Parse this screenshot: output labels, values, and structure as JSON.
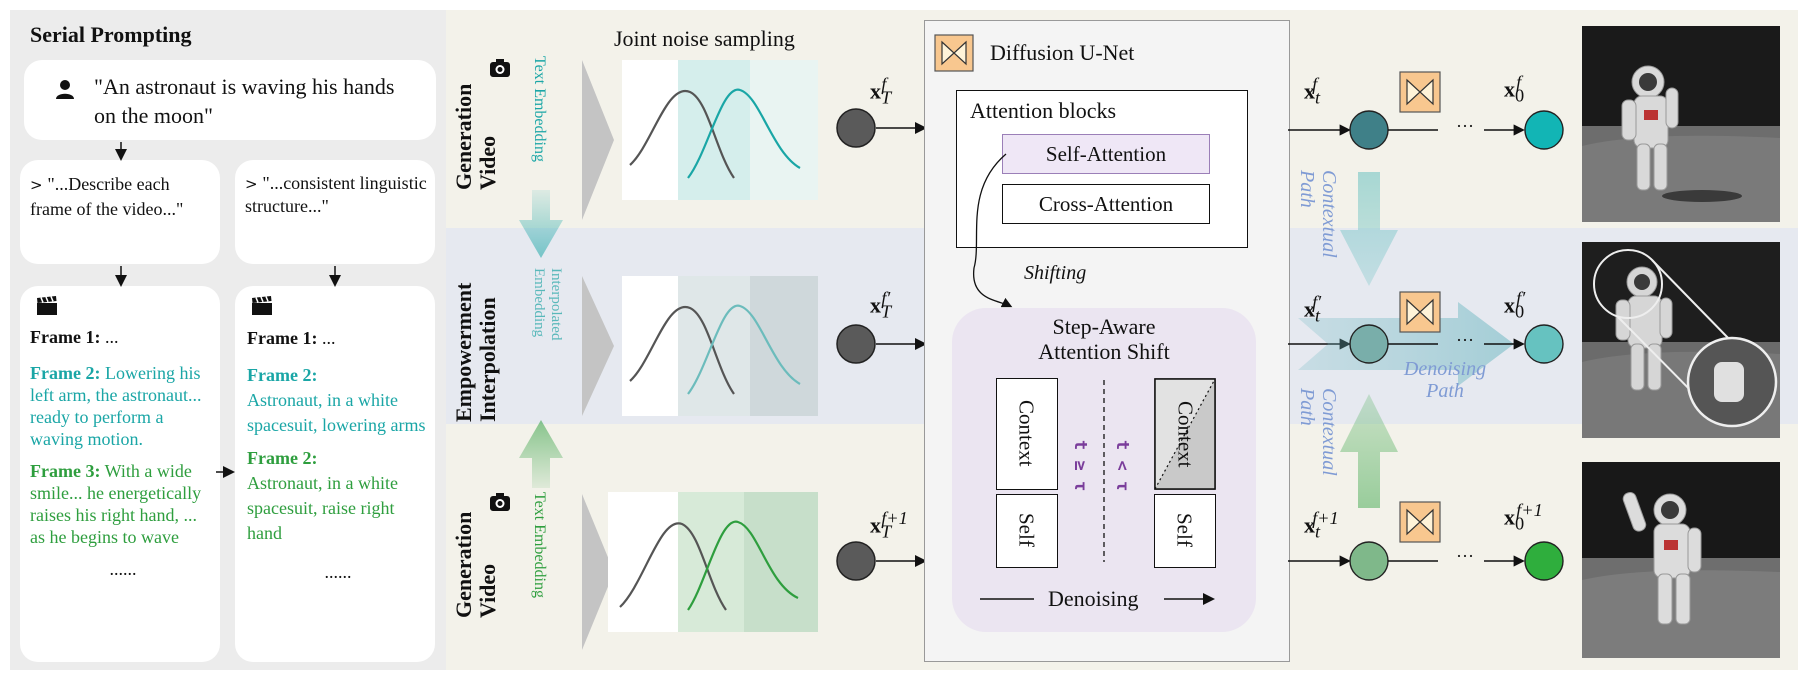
{
  "left": {
    "title": "Serial Prompting",
    "user_prompt": "\"An astronaut is waving his hands on the moon\"",
    "prompt_a": "\"...Describe each frame of the video...\"",
    "prompt_b": "\"...consistent linguistic structure...\"",
    "frames_a": {
      "frame1_label": "Frame 1:",
      "frame1_text": "...",
      "frame2_label": "Frame 2:",
      "frame2_text": "Lowering his left arm, the astronaut... ready to perform a waving motion.",
      "frame3_label": "Frame 3:",
      "frame3_text": "With a wide smile... he energetically raises his right hand, ... as he begins to wave",
      "ellipsis": "......"
    },
    "frames_b": {
      "frame1_label": "Frame 1:",
      "frame1_text": "...",
      "frame2a_label": "Frame 2:",
      "frame2a_text": "Astronaut, in a white spacesuit, lowering arms",
      "frame2b_label": "Frame 2:",
      "frame2b_text": "Astronaut, in a white spacesuit, raise right hand",
      "ellipsis": "......"
    }
  },
  "rows": {
    "top_label_line1": "Video",
    "top_label_line2": "Generation",
    "mid_label_line1": "Interpolation",
    "mid_label_line2": "Empowerment",
    "bot_label_line1": "Video",
    "bot_label_line2": "Generation",
    "top_embed": "Text Embedding",
    "mid_embed": "Interpolated Embedding",
    "bot_embed": "Text Embedding",
    "joint_noise": "Joint noise sampling"
  },
  "latents": {
    "xT_f": "f",
    "xT_fp": "f′",
    "xT_f1": "f+1",
    "xt_f": "f",
    "xt_fp": "f′",
    "xt_f1": "f+1",
    "x0_f": "f",
    "x0_fp": "f′",
    "x0_f1": "f+1",
    "base_x": "x",
    "sub_T": "T",
    "sub_t": "t",
    "sub_0": "0",
    "dots": "···"
  },
  "unet": {
    "title": "Diffusion U-Net",
    "attention_blocks": "Attention blocks",
    "self_attention": "Self-Attention",
    "cross_attention": "Cross-Attention",
    "shifting": "Shifting",
    "shift_title_1": "Step-Aware",
    "shift_title_2": "Attention Shift",
    "context": "Context",
    "self": "Self",
    "t_ge": "t ≥ τ",
    "t_lt": "t < τ",
    "denoising": "Denoising"
  },
  "paths": {
    "contextual_top": "Contextual Path",
    "contextual_bot": "Contextual Path",
    "denoising": "Denoising Path"
  },
  "colors": {
    "teal": "#1aa6a6",
    "green": "#2e9e3e",
    "node_gray": "#5a5a5a",
    "row_tint": "#f3f2ea",
    "mid_tint": "#e7eaf0",
    "unet_icon": "#f8c78f"
  }
}
